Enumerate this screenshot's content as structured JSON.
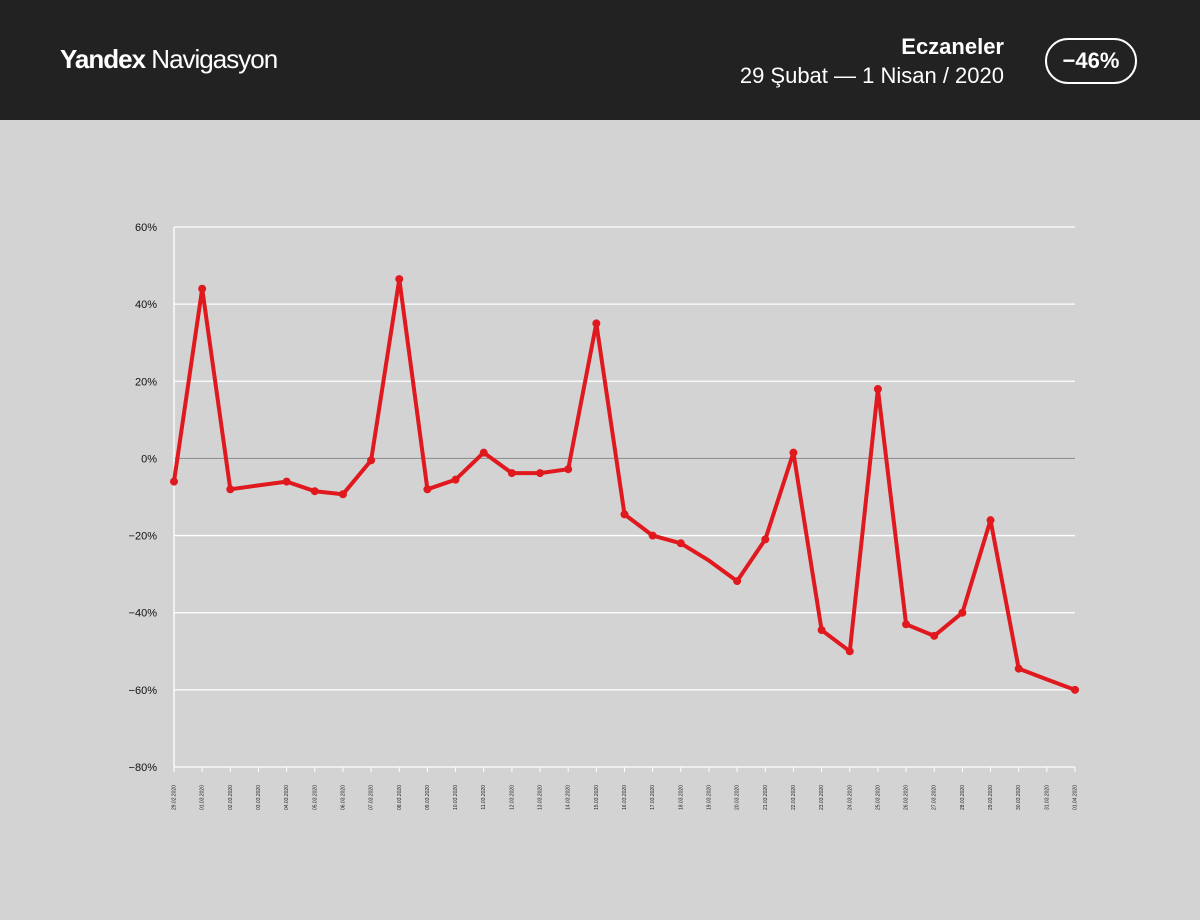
{
  "header": {
    "brand_bold": "Yandex",
    "brand_regular": "Navigasyon",
    "title": "Eczaneler",
    "subtitle": "29 Şubat  —  1 Nisan / 2020",
    "badge": "−46%"
  },
  "colors": {
    "header_bg": "#222222",
    "plot_bg": "#d3d3d3",
    "line": "#e0191e",
    "grid": "#ffffff",
    "zero_line": "#888888"
  },
  "chart_data": {
    "type": "line",
    "title": "",
    "xlabel": "",
    "ylabel": "",
    "ylim": [
      -80,
      60
    ],
    "yticks": [
      60,
      40,
      20,
      0,
      -20,
      -40,
      -60,
      -80
    ],
    "ytick_labels": [
      "60%",
      "40%",
      "20%",
      "0%",
      "−20%",
      "−40%",
      "−60%",
      "−80%"
    ],
    "grid": true,
    "legend": "none",
    "x": [
      "29.02.2020",
      "01.03.2020",
      "02.03.2020",
      "03.03.2020",
      "04.03.2020",
      "05.03.2020",
      "06.03.2020",
      "07.03.2020",
      "08.03.2020",
      "09.03.2020",
      "10.03.2020",
      "11.03.2020",
      "12.03.2020",
      "13.03.2020",
      "14.03.2020",
      "15.03.2020",
      "16.03.2020",
      "17.03.2020",
      "18.03.2020",
      "19.03.2020",
      "20.03.2020",
      "21.03.2020",
      "22.03.2020",
      "23.03.2020",
      "24.03.2020",
      "25.03.2020",
      "26.03.2020",
      "27.03.2020",
      "28.03.2020",
      "29.03.2020",
      "30.03.2020",
      "31.03.2020",
      "01.04.2020"
    ],
    "series": [
      {
        "values": [
          -6,
          44,
          -8,
          -7,
          -6,
          -8.5,
          -9.3,
          -0.5,
          46.5,
          -8,
          -5.5,
          1.5,
          -3.8,
          -3.8,
          -2.8,
          35,
          -14.5,
          -20,
          -22,
          -26.5,
          -31.8,
          -21,
          1.5,
          -44.5,
          -50,
          18,
          -43,
          -46,
          -40,
          -16,
          -54.5,
          -57.3,
          -60
        ],
        "markers": [
          true,
          true,
          true,
          false,
          true,
          true,
          true,
          true,
          true,
          true,
          true,
          true,
          true,
          true,
          true,
          true,
          true,
          true,
          true,
          false,
          true,
          true,
          true,
          true,
          true,
          true,
          true,
          true,
          true,
          true,
          true,
          false,
          true
        ]
      }
    ]
  }
}
